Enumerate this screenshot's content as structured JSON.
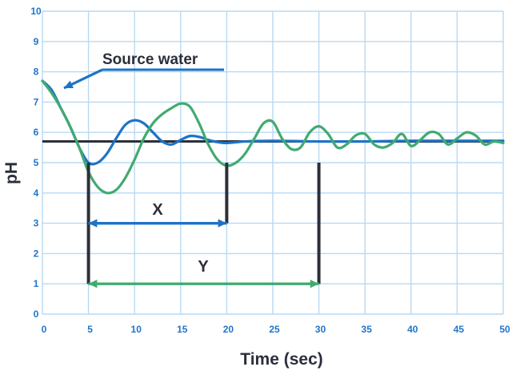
{
  "chart_data": {
    "type": "line",
    "title": "",
    "xlabel": "Time (sec)",
    "ylabel": "pH",
    "xlim": [
      0,
      50
    ],
    "ylim": [
      0,
      10
    ],
    "x_ticks": [
      "0",
      "5",
      "10",
      "15",
      "20",
      "25",
      "30",
      "35",
      "40",
      "45",
      "50"
    ],
    "y_ticks": [
      "0",
      "1",
      "2",
      "3",
      "4",
      "5",
      "6",
      "7",
      "8",
      "9",
      "10"
    ],
    "grid": true,
    "setpoint": 5.7,
    "series": [
      {
        "color": "#1d73c7",
        "points": [
          [
            0,
            7.7
          ],
          [
            1,
            7.4
          ],
          [
            2,
            6.8
          ],
          [
            3,
            6.2
          ],
          [
            4,
            5.5
          ],
          [
            5,
            5.0
          ],
          [
            6,
            5.0
          ],
          [
            7,
            5.3
          ],
          [
            8,
            5.8
          ],
          [
            9,
            6.25
          ],
          [
            10,
            6.4
          ],
          [
            11,
            6.3
          ],
          [
            12,
            6.0
          ],
          [
            13,
            5.7
          ],
          [
            14,
            5.6
          ],
          [
            15,
            5.75
          ],
          [
            16,
            5.88
          ],
          [
            17,
            5.85
          ],
          [
            18,
            5.75
          ],
          [
            19,
            5.68
          ],
          [
            20,
            5.65
          ],
          [
            22,
            5.7
          ],
          [
            25,
            5.72
          ],
          [
            30,
            5.7
          ],
          [
            35,
            5.7
          ],
          [
            40,
            5.72
          ],
          [
            45,
            5.72
          ],
          [
            50,
            5.72
          ]
        ]
      },
      {
        "color": "#40ab6f",
        "points": [
          [
            0,
            7.7
          ],
          [
            1,
            7.3
          ],
          [
            2,
            6.8
          ],
          [
            3,
            6.2
          ],
          [
            4,
            5.5
          ],
          [
            5,
            4.7
          ],
          [
            6,
            4.2
          ],
          [
            7,
            4.0
          ],
          [
            8,
            4.1
          ],
          [
            9,
            4.5
          ],
          [
            10,
            5.1
          ],
          [
            11,
            5.8
          ],
          [
            12,
            6.3
          ],
          [
            13,
            6.6
          ],
          [
            14,
            6.8
          ],
          [
            15,
            6.95
          ],
          [
            16,
            6.85
          ],
          [
            17,
            6.3
          ],
          [
            18,
            5.6
          ],
          [
            19,
            5.1
          ],
          [
            20,
            4.9
          ],
          [
            21,
            5.0
          ],
          [
            22,
            5.3
          ],
          [
            23,
            5.8
          ],
          [
            24,
            6.3
          ],
          [
            25,
            6.35
          ],
          [
            26,
            5.8
          ],
          [
            27,
            5.45
          ],
          [
            28,
            5.5
          ],
          [
            29,
            6.0
          ],
          [
            30,
            6.2
          ],
          [
            31,
            5.95
          ],
          [
            32,
            5.5
          ],
          [
            33,
            5.6
          ],
          [
            34,
            5.9
          ],
          [
            35,
            5.95
          ],
          [
            36,
            5.6
          ],
          [
            37,
            5.5
          ],
          [
            38,
            5.65
          ],
          [
            39,
            5.95
          ],
          [
            40,
            5.55
          ],
          [
            41,
            5.75
          ],
          [
            42,
            6.0
          ],
          [
            43,
            5.95
          ],
          [
            44,
            5.6
          ],
          [
            45,
            5.8
          ],
          [
            46,
            6.0
          ],
          [
            47,
            5.9
          ],
          [
            48,
            5.6
          ],
          [
            49,
            5.7
          ],
          [
            50,
            5.65
          ]
        ]
      }
    ],
    "annotations": {
      "source_label": "Source water",
      "x_label": "X",
      "y_label": "Y",
      "source_arrow_target": [
        0,
        7.7
      ],
      "markers_black": [
        {
          "x": 5,
          "y_from": 1,
          "y_to": 5
        },
        {
          "x": 20,
          "y_from": 3,
          "y_to": 5
        },
        {
          "x": 30,
          "y_from": 1,
          "y_to": 5
        }
      ],
      "x_arrow": {
        "from": 5,
        "to": 20,
        "y": 3
      },
      "y_arrow": {
        "from": 5,
        "to": 30,
        "y": 1
      }
    },
    "colors": {
      "grid": "#b8d9f2",
      "axis_ticks": "#1f74c9",
      "black_line": "#2b2f3a",
      "blue_series": "#1d73c7",
      "green_series": "#40ab6f"
    }
  }
}
